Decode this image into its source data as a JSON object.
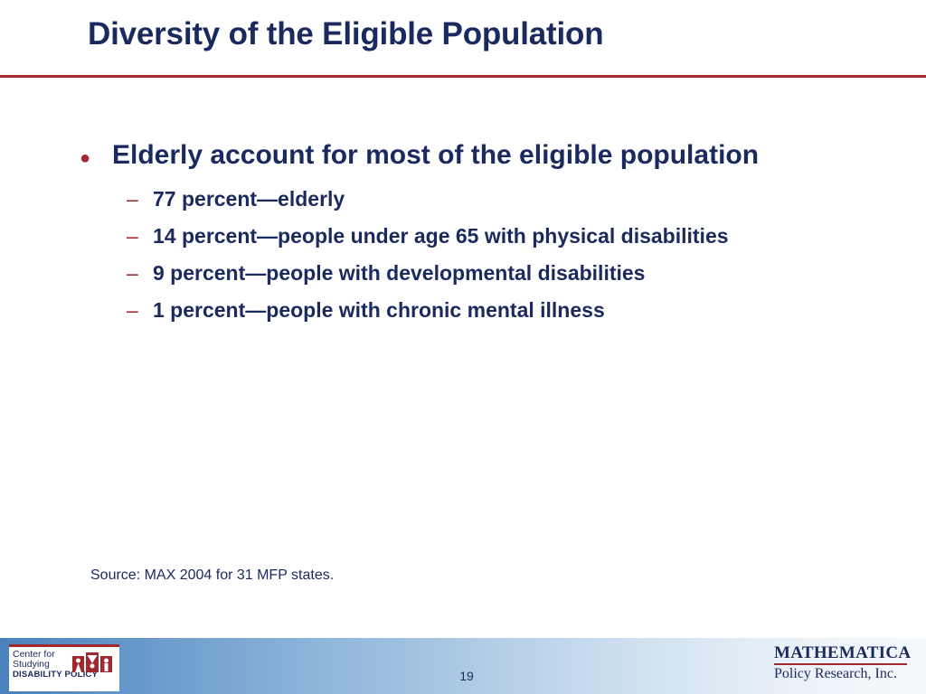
{
  "slide": {
    "title": "Diversity of the Eligible Population",
    "bullet": {
      "symbol": "●",
      "text": "Elderly account for most of the eligible population"
    },
    "sub_items": [
      {
        "dash": "–",
        "text": "77 percent—elderly"
      },
      {
        "dash": "–",
        "text": "14 percent—people under age 65 with physical disabilities"
      },
      {
        "dash": "–",
        "text": "9 percent—people with developmental disabilities"
      },
      {
        "dash": "–",
        "text": "1 percent—people with chronic mental illness"
      }
    ],
    "source": "Source: MAX 2004 for 31 MFP states."
  },
  "footer": {
    "page_number": "19",
    "left_logo": {
      "line1": "Center for",
      "line2": "Studying",
      "line3": "DISABILITY POLICY"
    },
    "right_logo": {
      "line1": "MATHEMATICA",
      "line2": "Policy Research, Inc."
    }
  },
  "colors": {
    "title": "#1a2a5e",
    "accent": "#a1282d"
  }
}
